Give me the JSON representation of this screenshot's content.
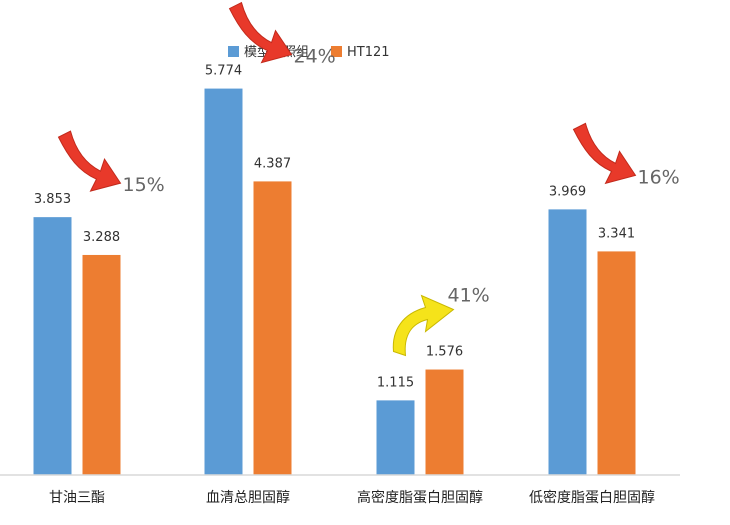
{
  "chart_data": {
    "type": "bar",
    "categories": [
      "甘油三酯",
      "血清总胆固醇",
      "高密度脂蛋白胆固醇",
      "低密度脂蛋白胆固醇"
    ],
    "series": [
      {
        "name": "模型对照组",
        "values": [
          3.853,
          5.774,
          1.115,
          3.969
        ],
        "color": "#5b9bd5"
      },
      {
        "name": "HT121",
        "values": [
          3.288,
          4.387,
          1.576,
          3.341
        ],
        "color": "#ed7d31"
      }
    ],
    "value_labels": [
      [
        "3.853",
        "5.774",
        "1.115",
        "3.969"
      ],
      [
        "3.288",
        "4.387",
        "1.576",
        "3.341"
      ]
    ],
    "annotations": [
      {
        "text": "15%",
        "direction": "down",
        "color": "#e8392a"
      },
      {
        "text": "24%",
        "direction": "down",
        "color": "#e8392a"
      },
      {
        "text": "41%",
        "direction": "up",
        "color": "#f5e31a"
      },
      {
        "text": "16%",
        "direction": "down",
        "color": "#e8392a"
      }
    ],
    "ylim": [
      0,
      6.5
    ],
    "grid": false,
    "legend_position": "top-center",
    "xlabel": "",
    "ylabel": ""
  }
}
